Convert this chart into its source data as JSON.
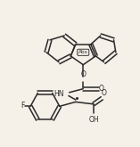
{
  "background_color": "#f5f0e8",
  "line_color": "#2a2a2a",
  "line_width": 1.1,
  "fig_width": 1.57,
  "fig_height": 1.65,
  "dpi": 100,
  "abs_label": "Abs",
  "f_label": "F",
  "hn_label": "HN",
  "o_label1": "O",
  "o_label2": "O",
  "o_label3": "O",
  "oh_label": "OH",
  "stereo_dot": "•"
}
